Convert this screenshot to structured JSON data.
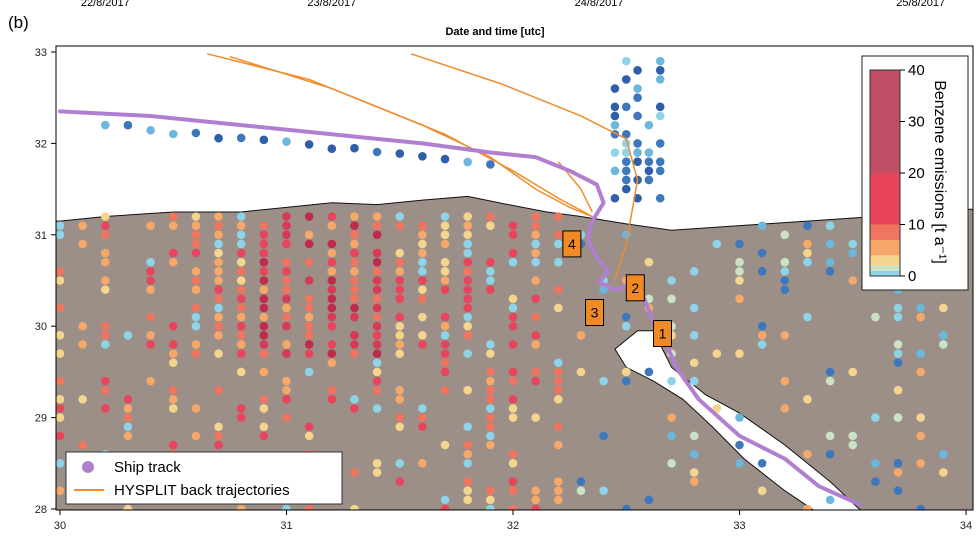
{
  "panel_label": "(b)",
  "top_axis": {
    "title": "Date and time [utc]",
    "ticks": [
      {
        "label": "22/8/2017",
        "lon": 30.2
      },
      {
        "label": "23/8/2017",
        "lon": 31.2
      },
      {
        "label": "24/8/2017",
        "lon": 32.38
      },
      {
        "label": "25/8/2017",
        "lon": 33.8
      }
    ]
  },
  "chart_data": {
    "type": "scatter",
    "xlim": [
      30,
      34
    ],
    "ylim": [
      28,
      33
    ],
    "x_ticks": [
      30,
      31,
      32,
      33,
      34
    ],
    "y_ticks": [
      28,
      29,
      30,
      31,
      32,
      33
    ],
    "grid": false,
    "colorbar": {
      "title": "Benzene emissions [t a⁻¹]",
      "ticks": [
        0,
        10,
        20,
        30,
        40
      ],
      "range": [
        0,
        40
      ],
      "levels": [
        {
          "from": 0,
          "to": 1,
          "color": "#8fd3e8"
        },
        {
          "from": 1,
          "to": 2,
          "color": "#c9e3c4"
        },
        {
          "from": 2,
          "to": 4,
          "color": "#f5d58d"
        },
        {
          "from": 4,
          "to": 7,
          "color": "#f5a869"
        },
        {
          "from": 7,
          "to": 10,
          "color": "#ef7560"
        },
        {
          "from": 10,
          "to": 20,
          "color": "#e8455c"
        },
        {
          "from": 20,
          "to": 40,
          "color": "#bf4d63"
        }
      ]
    },
    "ship_track": {
      "name": "Ship track",
      "color": "#b07fcf",
      "points": [
        [
          30.0,
          32.35
        ],
        [
          30.4,
          32.3
        ],
        [
          30.8,
          32.2
        ],
        [
          31.2,
          32.1
        ],
        [
          31.6,
          32.0
        ],
        [
          31.9,
          31.9
        ],
        [
          32.1,
          31.85
        ],
        [
          32.25,
          31.7
        ],
        [
          32.37,
          31.55
        ],
        [
          32.4,
          31.35
        ],
        [
          32.35,
          31.15
        ],
        [
          32.33,
          30.95
        ],
        [
          32.37,
          30.75
        ],
        [
          32.42,
          30.6
        ],
        [
          32.38,
          30.48
        ],
        [
          32.45,
          30.4
        ],
        [
          32.53,
          30.45
        ],
        [
          32.58,
          30.3
        ],
        [
          32.61,
          30.1
        ],
        [
          32.63,
          29.95
        ],
        [
          32.67,
          29.85
        ],
        [
          32.72,
          29.55
        ],
        [
          32.82,
          29.2
        ],
        [
          33.0,
          28.8
        ],
        [
          33.2,
          28.55
        ],
        [
          33.35,
          28.25
        ],
        [
          33.53,
          28.05
        ]
      ]
    },
    "trajectories": {
      "name": "HYSPLIT back trajectories",
      "color": "#ef8c2c",
      "lines": [
        [
          [
            30.65,
            32.98
          ],
          [
            31.1,
            32.7
          ],
          [
            31.6,
            32.2
          ],
          [
            31.9,
            31.85
          ],
          [
            32.1,
            31.5
          ],
          [
            32.25,
            31.3
          ],
          [
            32.35,
            31.2
          ]
        ],
        [
          [
            30.75,
            32.95
          ],
          [
            31.2,
            32.6
          ],
          [
            31.7,
            32.1
          ],
          [
            32.0,
            31.7
          ],
          [
            32.2,
            31.4
          ],
          [
            32.35,
            31.2
          ]
        ],
        [
          [
            31.55,
            32.98
          ],
          [
            31.95,
            32.65
          ],
          [
            32.3,
            32.3
          ],
          [
            32.5,
            32.05
          ],
          [
            32.55,
            31.6
          ],
          [
            32.5,
            30.9
          ],
          [
            32.45,
            30.5
          ]
        ],
        [
          [
            32.2,
            31.8
          ],
          [
            32.3,
            31.5
          ],
          [
            32.35,
            31.25
          ]
        ]
      ]
    },
    "markers": [
      {
        "label": "1",
        "lon": 32.66,
        "lat": 29.92
      },
      {
        "label": "2",
        "lon": 32.54,
        "lat": 30.42
      },
      {
        "label": "3",
        "lon": 32.36,
        "lat": 30.15
      },
      {
        "label": "4",
        "lon": 32.26,
        "lat": 30.9
      }
    ],
    "emission_points_regions": [
      {
        "lon_from": 30.0,
        "lon_to": 32.3,
        "lat_from": 28.0,
        "lat_to": 31.3,
        "dominant_level": "high"
      },
      {
        "lon_from": 32.3,
        "lon_to": 34.0,
        "lat_from": 28.0,
        "lat_to": 31.3,
        "dominant_level": "low"
      },
      {
        "lon_from": 30.0,
        "lon_to": 32.0,
        "lat_from": 31.3,
        "lat_to": 32.3,
        "dominant_level": "very_low"
      },
      {
        "lon_from": 32.35,
        "lon_to": 32.9,
        "lat_from": 31.3,
        "lat_to": 33.0,
        "dominant_level": "very_low"
      }
    ]
  },
  "legend": {
    "items": [
      {
        "label": "Ship track",
        "kind": "dot",
        "color": "#b07fcf"
      },
      {
        "label": "HYSPLIT back trajectories",
        "kind": "line",
        "color": "#ef8c2c"
      }
    ]
  },
  "colors": {
    "land": "#9b8f87",
    "sea": "#ffffff",
    "marker_fill": "#f08a24"
  }
}
